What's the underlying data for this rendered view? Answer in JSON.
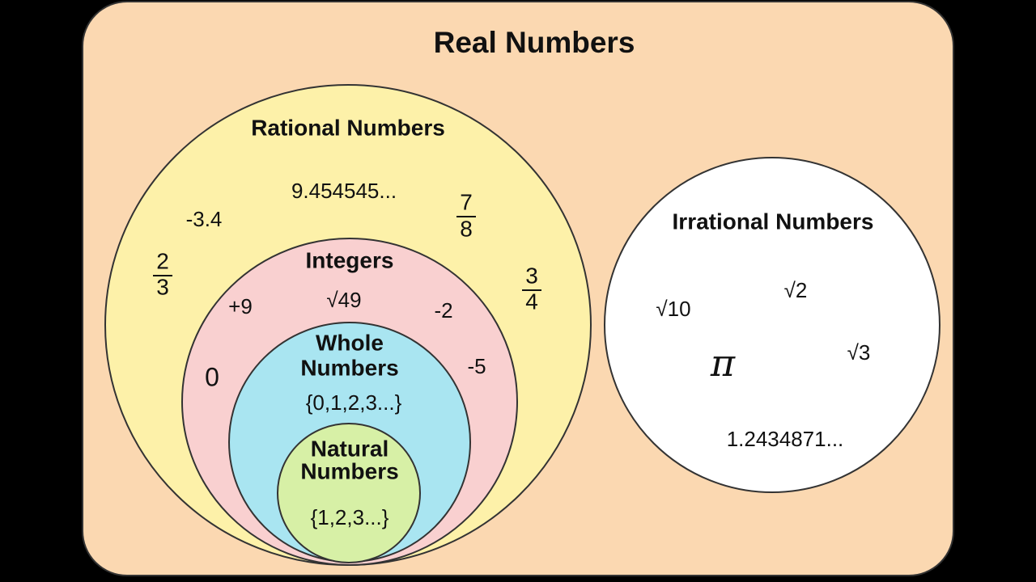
{
  "title": "Real Numbers",
  "rational": {
    "label": "Rational Numbers",
    "examples": [
      "9.454545...",
      "-3.4"
    ],
    "fractions": [
      {
        "numerator": "7",
        "denominator": "8"
      },
      {
        "numerator": "2",
        "denominator": "3"
      },
      {
        "numerator": "3",
        "denominator": "4"
      }
    ]
  },
  "integers": {
    "label": "Integers",
    "examples": [
      "+9",
      "√49",
      "-2",
      "-5",
      "0"
    ]
  },
  "whole": {
    "label": [
      "Whole",
      "Numbers"
    ],
    "set": "{0,1,2,3...}"
  },
  "natural": {
    "label": [
      "Natural",
      "Numbers"
    ],
    "set": "{1,2,3...}"
  },
  "irrational": {
    "label": "Irrational Numbers",
    "examples": [
      "√10",
      "√2",
      "π",
      "√3",
      "1.2434871..."
    ]
  }
}
